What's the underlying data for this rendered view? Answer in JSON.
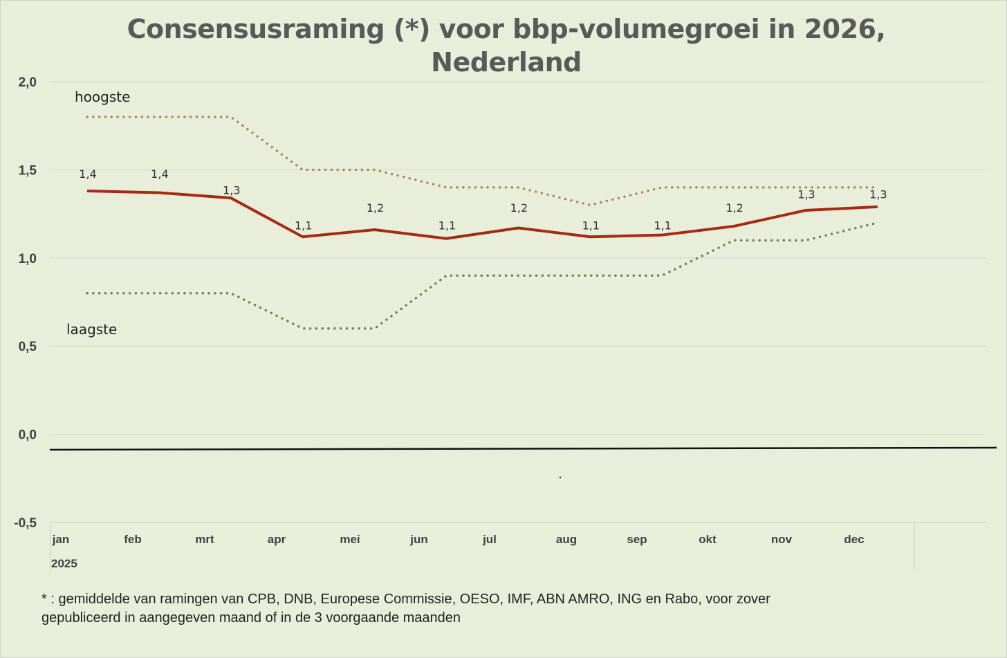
{
  "chart_data": {
    "type": "line",
    "title": "Consensusraming (*) voor bbp-volumegroei in 2026, Nederland",
    "title_lines": [
      "Consensusraming (*) voor bbp-volumegroei in 2026,",
      "Nederland"
    ],
    "xlabel": "",
    "ylabel": "",
    "ylim": [
      -0.5,
      2.0
    ],
    "yticks": [
      2.0,
      1.5,
      1.0,
      0.5,
      0.0,
      -0.5
    ],
    "ytick_labels": [
      "2,0",
      "1,5",
      "1,0",
      "0,5",
      "0,0",
      "-0,5"
    ],
    "categories": [
      "jan",
      "feb",
      "mrt",
      "apr",
      "mei",
      "jun",
      "jul",
      "aug",
      "sep",
      "okt",
      "nov",
      "dec"
    ],
    "year_label": "2025",
    "grid": true,
    "series": [
      {
        "name": "consensus",
        "color": "#a52a12",
        "style": "solid",
        "values": [
          1.38,
          1.37,
          1.34,
          1.12,
          1.16,
          1.11,
          1.17,
          1.12,
          1.13,
          1.18,
          1.27,
          1.29
        ],
        "labels": [
          "1,4",
          "1,4",
          "1,3",
          "1,1",
          "1,2",
          "1,1",
          "1,2",
          "1,1",
          "1,1",
          "1,2",
          "1,3",
          "1,3"
        ]
      },
      {
        "name": "hoogste",
        "color": "#a8875a",
        "style": "dotted",
        "values": [
          1.8,
          1.8,
          1.8,
          1.5,
          1.5,
          1.4,
          1.4,
          1.3,
          1.4,
          1.4,
          1.4,
          1.4
        ]
      },
      {
        "name": "laagste",
        "color": "#6e8150",
        "style": "dotted",
        "values": [
          0.8,
          0.8,
          0.8,
          0.6,
          0.6,
          0.9,
          0.9,
          0.9,
          0.9,
          1.1,
          1.1,
          1.2
        ]
      }
    ],
    "annotations": [
      "hoogste",
      "laagste"
    ]
  },
  "footnote": [
    "* : gemiddelde van ramingen van CPB, DNB, Europese Commissie, OESO, IMF, ABN AMRO, ING en Rabo, voor zover",
    "gepubliceerd in aangegeven maand of in de 3 voorgaande maanden"
  ]
}
